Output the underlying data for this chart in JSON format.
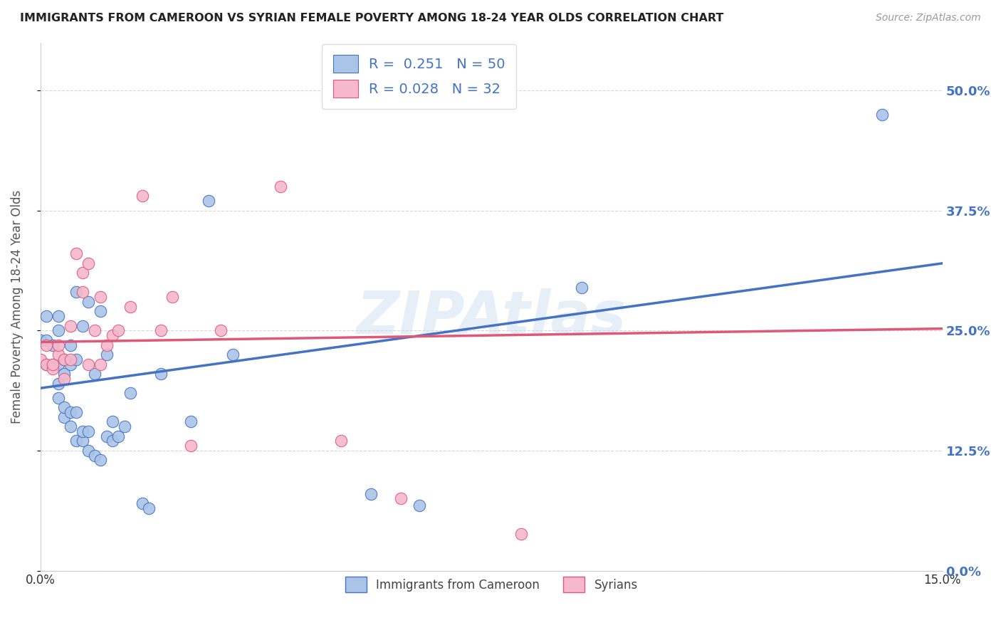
{
  "title": "IMMIGRANTS FROM CAMEROON VS SYRIAN FEMALE POVERTY AMONG 18-24 YEAR OLDS CORRELATION CHART",
  "source": "Source: ZipAtlas.com",
  "ylabel": "Female Poverty Among 18-24 Year Olds",
  "xlim": [
    0.0,
    0.15
  ],
  "ylim": [
    0.0,
    0.55
  ],
  "yticks": [
    0.0,
    0.125,
    0.25,
    0.375,
    0.5
  ],
  "ytick_labels": [
    "0.0%",
    "12.5%",
    "25.0%",
    "37.5%",
    "50.0%"
  ],
  "xtick_positions": [
    0.0,
    0.05,
    0.1,
    0.15
  ],
  "xtick_labels": [
    "0.0%",
    "",
    "",
    "15.0%"
  ],
  "cameroon_R": "0.251",
  "cameroon_N": "50",
  "syrian_R": "0.028",
  "syrian_N": "32",
  "cameroon_dot_color": "#aac4e8",
  "syrian_dot_color": "#f5b8cc",
  "cameroon_line_color": "#4472c4",
  "syrian_line_color": "#e05878",
  "background_color": "#ffffff",
  "grid_color": "#cccccc",
  "watermark": "ZIPAtlas",
  "cameroon_line_x0": 0.0,
  "cameroon_line_y0": 0.19,
  "cameroon_line_x1": 0.15,
  "cameroon_line_y1": 0.32,
  "syrian_line_x0": 0.0,
  "syrian_line_y0": 0.238,
  "syrian_line_x1": 0.15,
  "syrian_line_y1": 0.252,
  "cameroon_x": [
    0.0,
    0.001,
    0.001,
    0.001,
    0.002,
    0.002,
    0.003,
    0.003,
    0.003,
    0.003,
    0.003,
    0.004,
    0.004,
    0.004,
    0.004,
    0.005,
    0.005,
    0.005,
    0.005,
    0.006,
    0.006,
    0.006,
    0.006,
    0.007,
    0.007,
    0.007,
    0.008,
    0.008,
    0.008,
    0.009,
    0.009,
    0.01,
    0.01,
    0.011,
    0.011,
    0.012,
    0.012,
    0.013,
    0.014,
    0.015,
    0.017,
    0.018,
    0.02,
    0.025,
    0.028,
    0.032,
    0.055,
    0.063,
    0.09,
    0.14
  ],
  "cameroon_y": [
    0.24,
    0.215,
    0.24,
    0.265,
    0.215,
    0.235,
    0.18,
    0.195,
    0.215,
    0.25,
    0.265,
    0.16,
    0.17,
    0.205,
    0.22,
    0.15,
    0.165,
    0.215,
    0.235,
    0.135,
    0.165,
    0.22,
    0.29,
    0.135,
    0.145,
    0.255,
    0.125,
    0.145,
    0.28,
    0.12,
    0.205,
    0.115,
    0.27,
    0.14,
    0.225,
    0.135,
    0.155,
    0.14,
    0.15,
    0.185,
    0.07,
    0.065,
    0.205,
    0.155,
    0.385,
    0.225,
    0.08,
    0.068,
    0.295,
    0.475
  ],
  "syrian_x": [
    0.0,
    0.001,
    0.001,
    0.002,
    0.002,
    0.003,
    0.003,
    0.004,
    0.004,
    0.005,
    0.005,
    0.006,
    0.007,
    0.007,
    0.008,
    0.008,
    0.009,
    0.01,
    0.01,
    0.011,
    0.012,
    0.013,
    0.015,
    0.017,
    0.02,
    0.022,
    0.025,
    0.03,
    0.04,
    0.05,
    0.06,
    0.08
  ],
  "syrian_y": [
    0.22,
    0.215,
    0.235,
    0.21,
    0.215,
    0.225,
    0.235,
    0.2,
    0.22,
    0.22,
    0.255,
    0.33,
    0.29,
    0.31,
    0.32,
    0.215,
    0.25,
    0.285,
    0.215,
    0.235,
    0.245,
    0.25,
    0.275,
    0.39,
    0.25,
    0.285,
    0.13,
    0.25,
    0.4,
    0.135,
    0.075,
    0.038
  ]
}
